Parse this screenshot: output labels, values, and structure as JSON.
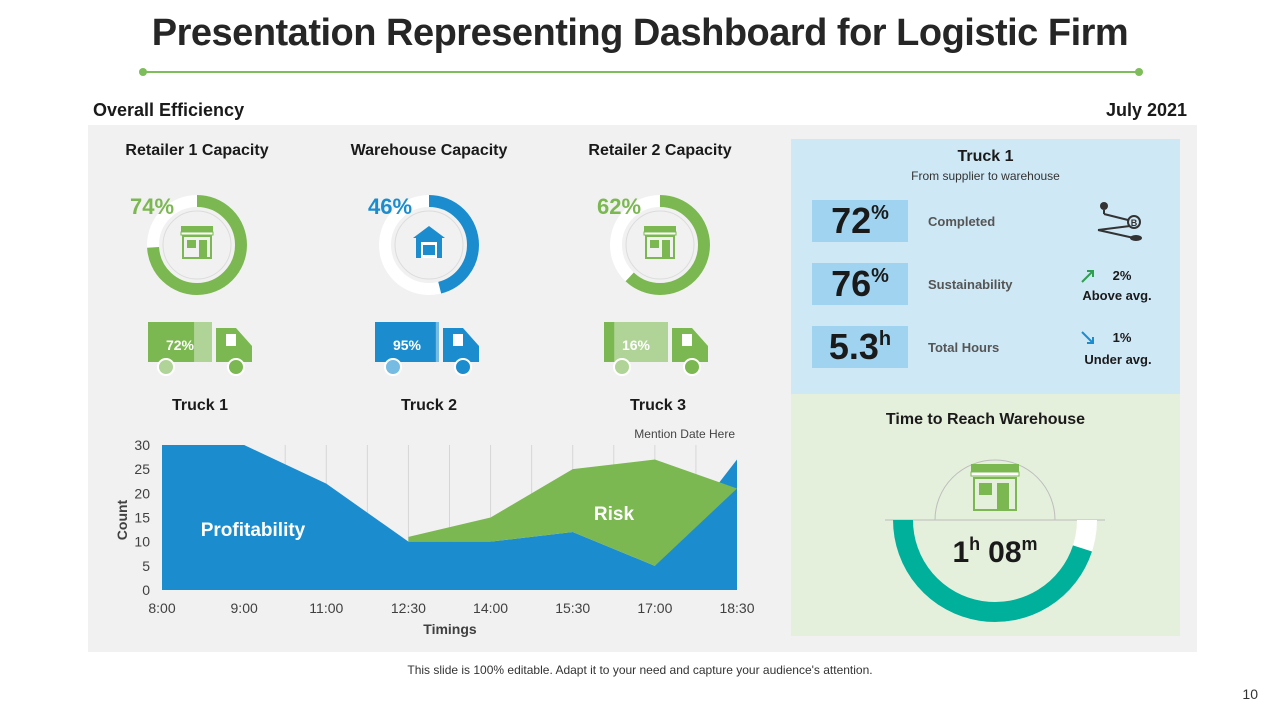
{
  "title": "Presentation Representing Dashboard for Logistic Firm",
  "section_title": "Overall Efficiency",
  "date": "July 2021",
  "colors": {
    "green": "#7cb851",
    "blue": "#1b8dcf",
    "teal": "#00b09b",
    "rule": "#7dbd5a"
  },
  "capacities": [
    {
      "title": "Retailer 1 Capacity",
      "percent_label": "74%",
      "value": 74,
      "color": "#7cb851",
      "icon": "store-icon"
    },
    {
      "title": "Warehouse Capacity",
      "percent_label": "46%",
      "value": 46,
      "color": "#1b8dcf",
      "icon": "warehouse-icon"
    },
    {
      "title": "Retailer 2 Capacity",
      "percent_label": "62%",
      "value": 62,
      "color": "#7cb851",
      "icon": "store-icon"
    }
  ],
  "trucks": [
    {
      "label": "Truck 1",
      "percent_label": "72%",
      "value": 72,
      "color": "#7cb851"
    },
    {
      "label": "Truck 2",
      "percent_label": "95%",
      "value": 95,
      "color": "#1b8dcf"
    },
    {
      "label": "Truck 3",
      "percent_label": "16%",
      "value": 16,
      "color": "#7cb851"
    }
  ],
  "chart_data": {
    "type": "area",
    "annotation": "Mention Date Here",
    "x": [
      "8:00",
      "9:00",
      "11:00",
      "12:30",
      "14:00",
      "15:30",
      "17:00",
      "18:30"
    ],
    "xlabel": "Timings",
    "ylabel": "Count",
    "ylim": [
      0,
      30
    ],
    "yticks": [
      0,
      5,
      10,
      15,
      20,
      25,
      30
    ],
    "grid": "vertical",
    "series": [
      {
        "name": "Profitability",
        "color": "#1b8dcf",
        "values": [
          30,
          30,
          22,
          10,
          10,
          12,
          5,
          27
        ]
      },
      {
        "name": "Risk",
        "color": "#7cb851",
        "values": [
          null,
          null,
          null,
          11,
          15,
          25,
          27,
          21
        ]
      }
    ]
  },
  "truck1": {
    "title": "Truck 1",
    "subtitle": "From supplier to warehouse",
    "metrics": [
      {
        "value": "72",
        "unit": "%",
        "label": "Completed"
      },
      {
        "value": "76",
        "unit": "%",
        "label": "Sustainability",
        "trend_value": "2%",
        "trend_text": "Above avg.",
        "trend_dir": "up"
      },
      {
        "value": "5.3",
        "unit": "h",
        "label": "Total Hours",
        "trend_value": "1%",
        "trend_text": "Under avg.",
        "trend_dir": "down"
      }
    ],
    "route_icon": "route-icon"
  },
  "time_to_reach": {
    "title": "Time to Reach Warehouse",
    "hours": "1",
    "hours_unit": "h",
    "minutes": "08",
    "minutes_unit": "m",
    "progress": 0.9,
    "icon": "store-icon"
  },
  "footer": "This slide is 100% editable. Adapt it to your need and capture your audience's attention.",
  "page_number": "10"
}
